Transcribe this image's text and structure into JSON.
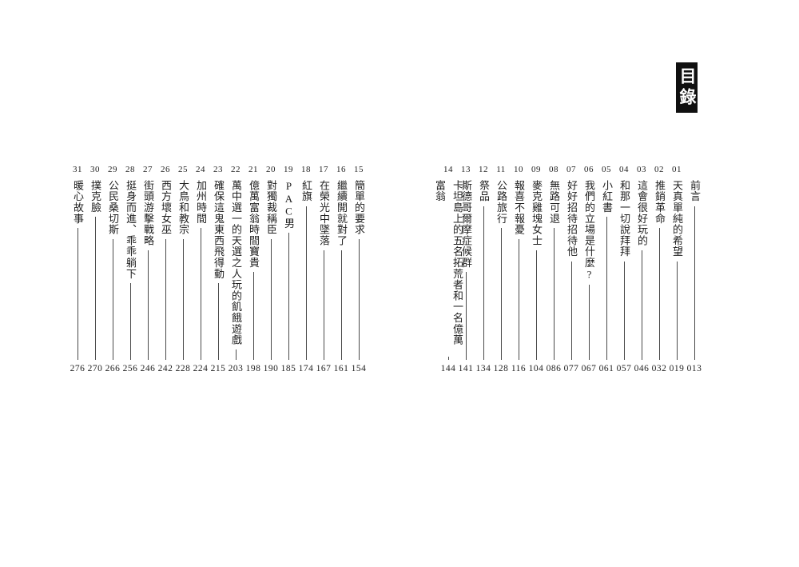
{
  "page": {
    "title": "目錄"
  },
  "colors": {
    "page_bg": "#ffffff",
    "ink": "#1f1f1f",
    "line": "#4a4a4a",
    "title_bg": "#101010",
    "title_fg": "#ffffff"
  },
  "toc": {
    "right_group": [
      {
        "num": "",
        "title": "前言",
        "page": "013"
      },
      {
        "num": "01",
        "title": "天真單純的希望",
        "page": "019"
      },
      {
        "num": "02",
        "title": "推銷革命",
        "page": "032"
      },
      {
        "num": "03",
        "title": "這會很好玩的",
        "page": "046"
      },
      {
        "num": "04",
        "title": "和那一切說拜拜",
        "page": "057"
      },
      {
        "num": "05",
        "title": "小紅書",
        "page": "061"
      },
      {
        "num": "06",
        "title": "我們的立場是什麼?",
        "page": "067"
      },
      {
        "num": "07",
        "title": "好好招待招待他",
        "page": "077"
      },
      {
        "num": "08",
        "title": "無路可退",
        "page": "086"
      },
      {
        "num": "09",
        "title": "麥克雞塊女士",
        "page": "104"
      },
      {
        "num": "10",
        "title": "報喜不報憂",
        "page": "116"
      },
      {
        "num": "11",
        "title": "公路旅行",
        "page": "128"
      },
      {
        "num": "12",
        "title": "祭品",
        "page": "134"
      },
      {
        "num": "13",
        "title": "斯德哥爾摩症候群",
        "page": "141"
      },
      {
        "num": "14",
        "title": "卡坦島上的五名拓荒者和一名億萬富翁",
        "page": "144"
      }
    ],
    "left_group": [
      {
        "num": "15",
        "title": "簡單的要求",
        "page": "154"
      },
      {
        "num": "16",
        "title": "繼續開就對了",
        "page": "161"
      },
      {
        "num": "17",
        "title": "在榮光中墜落",
        "page": "167"
      },
      {
        "num": "18",
        "title": "紅旗",
        "page": "174"
      },
      {
        "num": "19",
        "title": "PAC男",
        "page": "185"
      },
      {
        "num": "20",
        "title": "對獨裁稱臣",
        "page": "190"
      },
      {
        "num": "21",
        "title": "億萬富翁時間寶貴",
        "page": "198"
      },
      {
        "num": "22",
        "title": "萬中選一的天選之人玩的飢餓遊戲",
        "page": "203"
      },
      {
        "num": "23",
        "title": "確保這鬼東西飛得動",
        "page": "215"
      },
      {
        "num": "24",
        "title": "加州時間",
        "page": "224"
      },
      {
        "num": "25",
        "title": "大鳥和教宗",
        "page": "228"
      },
      {
        "num": "26",
        "title": "西方壞女巫",
        "page": "242"
      },
      {
        "num": "27",
        "title": "街頭游擊戰略",
        "page": "246"
      },
      {
        "num": "28",
        "title": "挺身而進、乖乖躺下",
        "page": "256"
      },
      {
        "num": "29",
        "title": "公民桑切斯",
        "page": "266"
      },
      {
        "num": "30",
        "title": "撲克臉",
        "page": "270"
      },
      {
        "num": "31",
        "title": "暖心故事",
        "page": "276"
      }
    ]
  }
}
